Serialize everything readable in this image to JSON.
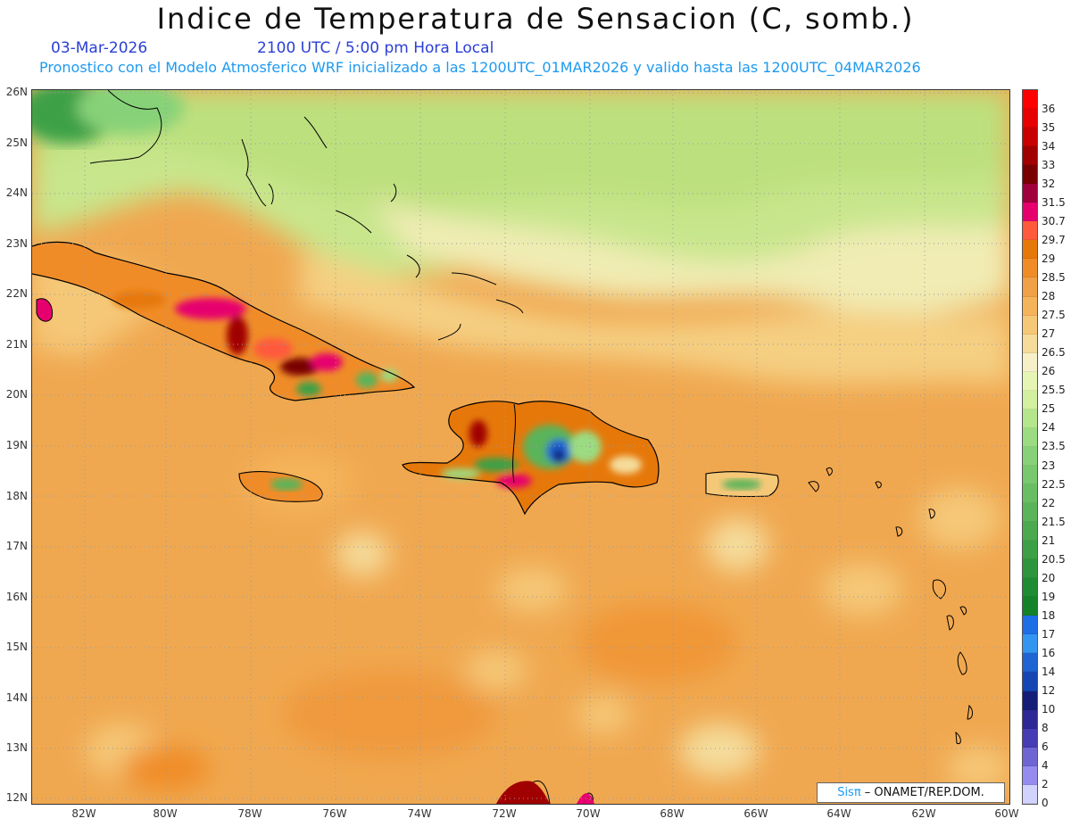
{
  "title": "Indice de Temperatura de Sensacion (C, somb.)",
  "date": "03-Mar-2026",
  "time": "2100 UTC / 5:00 pm Hora Local",
  "model_info": "Pronostico con el Modelo Atmosferico WRF inicializado a las 1200UTC_01MAR2026 y valido hasta las  1200UTC_04MAR2026",
  "lat_labels": [
    "26N",
    "25N",
    "24N",
    "23N",
    "22N",
    "21N",
    "20N",
    "19N",
    "18N",
    "17N",
    "16N",
    "15N",
    "14N",
    "13N",
    "12N"
  ],
  "lon_labels": [
    "82W",
    "80W",
    "78W",
    "76W",
    "74W",
    "72W",
    "70W",
    "68W",
    "66W",
    "64W",
    "62W",
    "60W"
  ],
  "legend": {
    "labels": [
      "36",
      "35",
      "34",
      "33",
      "32",
      "31.5",
      "30.7",
      "29.7",
      "29",
      "28.5",
      "28",
      "27.5",
      "27",
      "26.5",
      "26",
      "25.5",
      "25",
      "24",
      "23.5",
      "23",
      "22.5",
      "22",
      "21.5",
      "21",
      "20.5",
      "20",
      "19",
      "18",
      "17",
      "16",
      "14",
      "12",
      "10",
      "8",
      "6",
      "4",
      "2",
      "0"
    ],
    "colors": [
      "#ff0000",
      "#e60000",
      "#c80000",
      "#a00000",
      "#780000",
      "#a0003c",
      "#e6006e",
      "#ff5a3c",
      "#e6780a",
      "#f08c28",
      "#f0a046",
      "#f5b45a",
      "#f5c878",
      "#f5dc9b",
      "#f5f0c8",
      "#e6f5b4",
      "#d2f0a0",
      "#b4e68c",
      "#9bdc82",
      "#87d278",
      "#78c86e",
      "#69be64",
      "#5ab45a",
      "#4baa50",
      "#3ca046",
      "#2d963c",
      "#1e8c32",
      "#148228",
      "#1e6ee6",
      "#3296f0",
      "#1e64d2",
      "#1446b4",
      "#141e78",
      "#2d2896",
      "#463cb4",
      "#6e64d2",
      "#968cf0",
      "#d2d2ff"
    ]
  },
  "credit": {
    "brand": "Sisπ",
    "text": " – ONAMET/REP.DOM."
  },
  "colors": {
    "sea_base": "#f0a850",
    "land_outline": "#000000",
    "title": "#111111",
    "subtitle_date": "#2a3fd6",
    "subtitle_model": "#1e9af0"
  }
}
